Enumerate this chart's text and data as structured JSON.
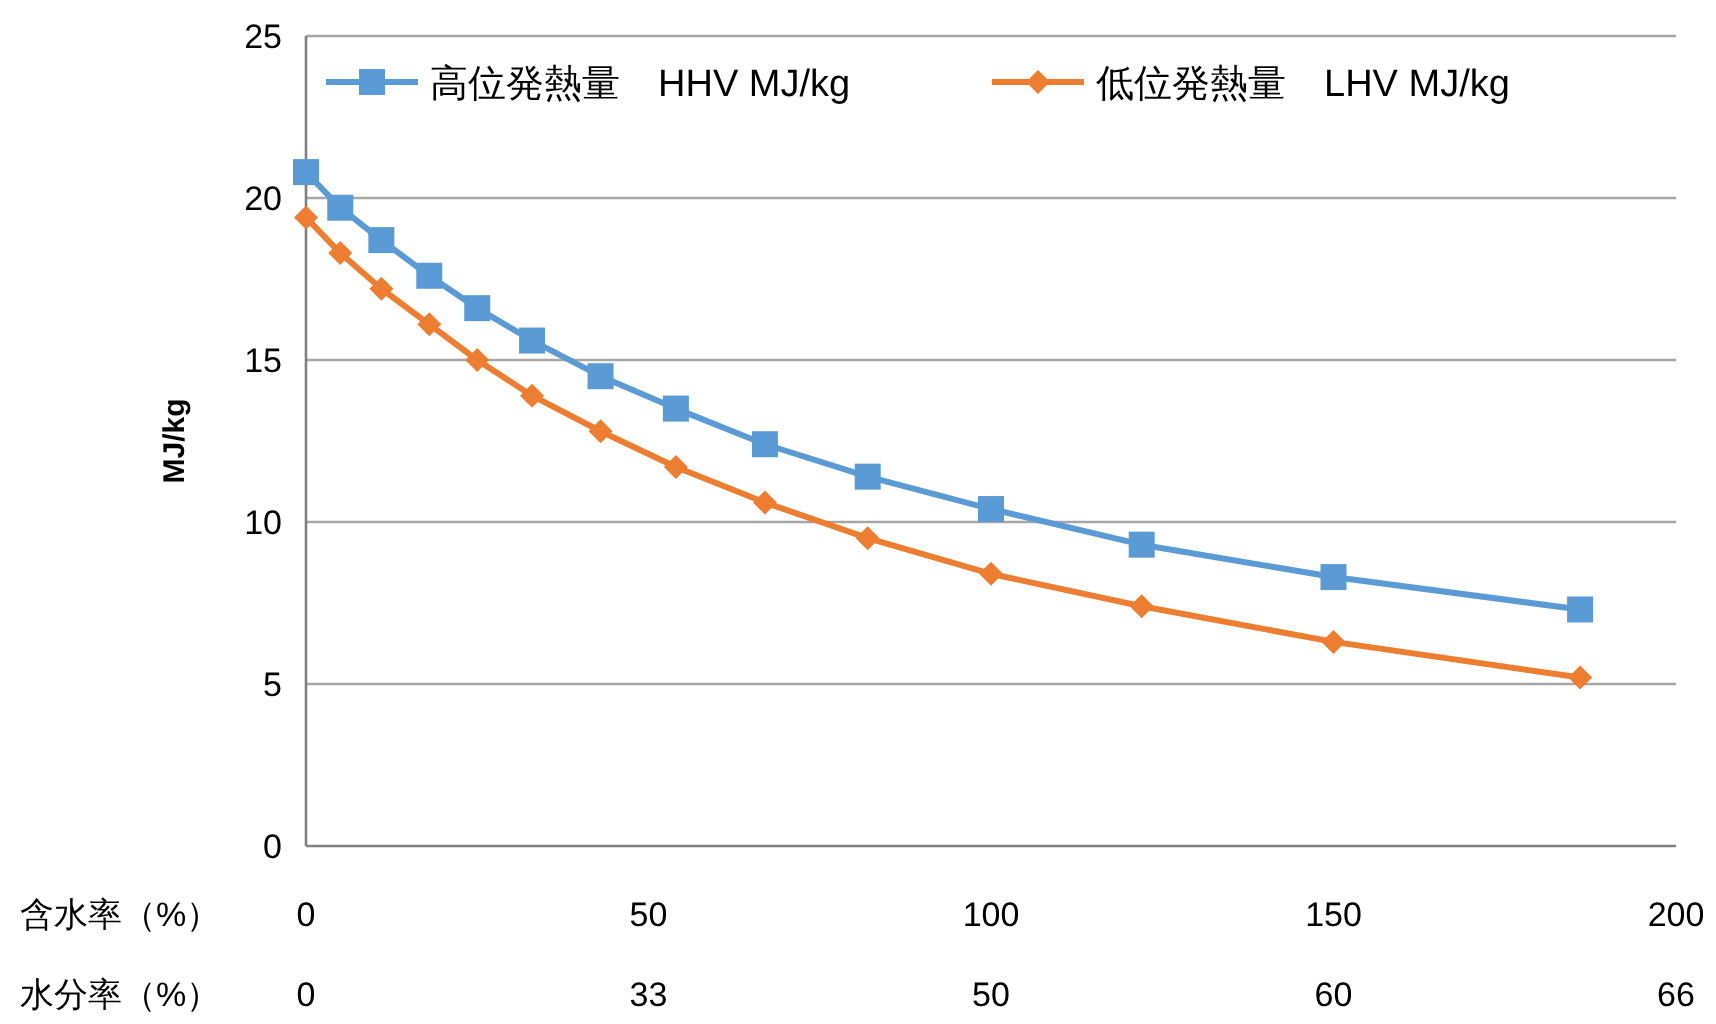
{
  "chart_data": {
    "type": "line",
    "ylabel": "MJ/kg",
    "xlabel": "含水率（%）",
    "annotations": [
      "水分率（%）",
      "0",
      "33",
      "50",
      "60",
      "66"
    ],
    "xlim": [
      0,
      200
    ],
    "xticks": [
      0,
      50,
      100,
      150,
      200
    ],
    "ylim": [
      0,
      25
    ],
    "yticks": [
      0,
      5,
      10,
      15,
      20,
      25
    ],
    "grid": "y",
    "legend": "top",
    "x": [
      0,
      5,
      11,
      18,
      25,
      33,
      43,
      54,
      67,
      82,
      100,
      122,
      150,
      186
    ],
    "series": [
      {
        "name": "高位発熱量　HHV MJ/kg",
        "color": "#5b9bd5",
        "marker": "square",
        "values": [
          20.8,
          19.7,
          18.7,
          17.6,
          16.6,
          15.6,
          14.5,
          13.5,
          12.4,
          11.4,
          10.4,
          9.3,
          8.3,
          7.3
        ]
      },
      {
        "name": "低位発熱量　LHV MJ/kg",
        "color": "#ed7d31",
        "marker": "diamond",
        "values": [
          19.4,
          18.3,
          17.2,
          16.1,
          15.0,
          13.9,
          12.8,
          11.7,
          10.6,
          9.5,
          8.4,
          7.4,
          6.3,
          5.2
        ]
      }
    ]
  }
}
